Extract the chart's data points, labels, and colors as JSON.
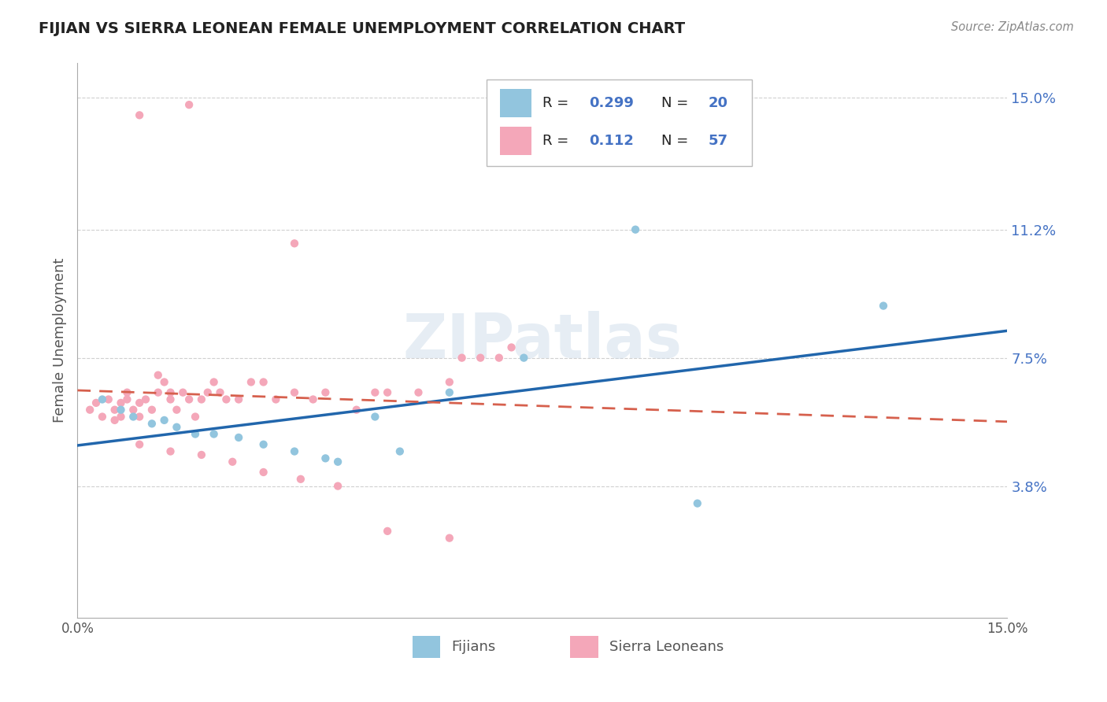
{
  "title": "FIJIAN VS SIERRA LEONEAN FEMALE UNEMPLOYMENT CORRELATION CHART",
  "source_text": "Source: ZipAtlas.com",
  "ylabel": "Female Unemployment",
  "xlim": [
    0.0,
    0.15
  ],
  "ylim": [
    0.0,
    0.16
  ],
  "xtick_labels": [
    "0.0%",
    "15.0%"
  ],
  "ytick_labels": [
    "3.8%",
    "7.5%",
    "11.2%",
    "15.0%"
  ],
  "ytick_values": [
    0.038,
    0.075,
    0.112,
    0.15
  ],
  "color_fijian": "#92c5de",
  "color_sierra": "#f4a7b9",
  "color_line_fijian": "#2166ac",
  "color_line_sierra": "#d6604d",
  "color_text_blue": "#4472c4",
  "background_color": "#ffffff",
  "grid_color": "#d0d0d0",
  "watermark_text": "ZIPatlas",
  "fijian_x": [
    0.004,
    0.007,
    0.009,
    0.012,
    0.014,
    0.016,
    0.019,
    0.022,
    0.026,
    0.03,
    0.035,
    0.04,
    0.042,
    0.048,
    0.052,
    0.06,
    0.072,
    0.09,
    0.1,
    0.13
  ],
  "fijian_y": [
    0.063,
    0.06,
    0.058,
    0.056,
    0.057,
    0.055,
    0.053,
    0.053,
    0.052,
    0.05,
    0.048,
    0.046,
    0.045,
    0.058,
    0.048,
    0.065,
    0.075,
    0.112,
    0.033,
    0.09
  ],
  "sierra_x": [
    0.002,
    0.003,
    0.004,
    0.005,
    0.006,
    0.006,
    0.007,
    0.007,
    0.008,
    0.008,
    0.009,
    0.01,
    0.01,
    0.011,
    0.012,
    0.013,
    0.013,
    0.014,
    0.015,
    0.015,
    0.016,
    0.017,
    0.018,
    0.019,
    0.02,
    0.021,
    0.022,
    0.023,
    0.024,
    0.026,
    0.028,
    0.03,
    0.032,
    0.035,
    0.038,
    0.04,
    0.045,
    0.048,
    0.05,
    0.055,
    0.06,
    0.062,
    0.065,
    0.068,
    0.07,
    0.01,
    0.015,
    0.02,
    0.025,
    0.03,
    0.036,
    0.042,
    0.05,
    0.06,
    0.035,
    0.018,
    0.01
  ],
  "sierra_y": [
    0.06,
    0.062,
    0.058,
    0.063,
    0.057,
    0.06,
    0.058,
    0.062,
    0.063,
    0.065,
    0.06,
    0.062,
    0.058,
    0.063,
    0.06,
    0.065,
    0.07,
    0.068,
    0.063,
    0.065,
    0.06,
    0.065,
    0.063,
    0.058,
    0.063,
    0.065,
    0.068,
    0.065,
    0.063,
    0.063,
    0.068,
    0.068,
    0.063,
    0.065,
    0.063,
    0.065,
    0.06,
    0.065,
    0.065,
    0.065,
    0.068,
    0.075,
    0.075,
    0.075,
    0.078,
    0.05,
    0.048,
    0.047,
    0.045,
    0.042,
    0.04,
    0.038,
    0.025,
    0.023,
    0.108,
    0.148,
    0.145
  ]
}
